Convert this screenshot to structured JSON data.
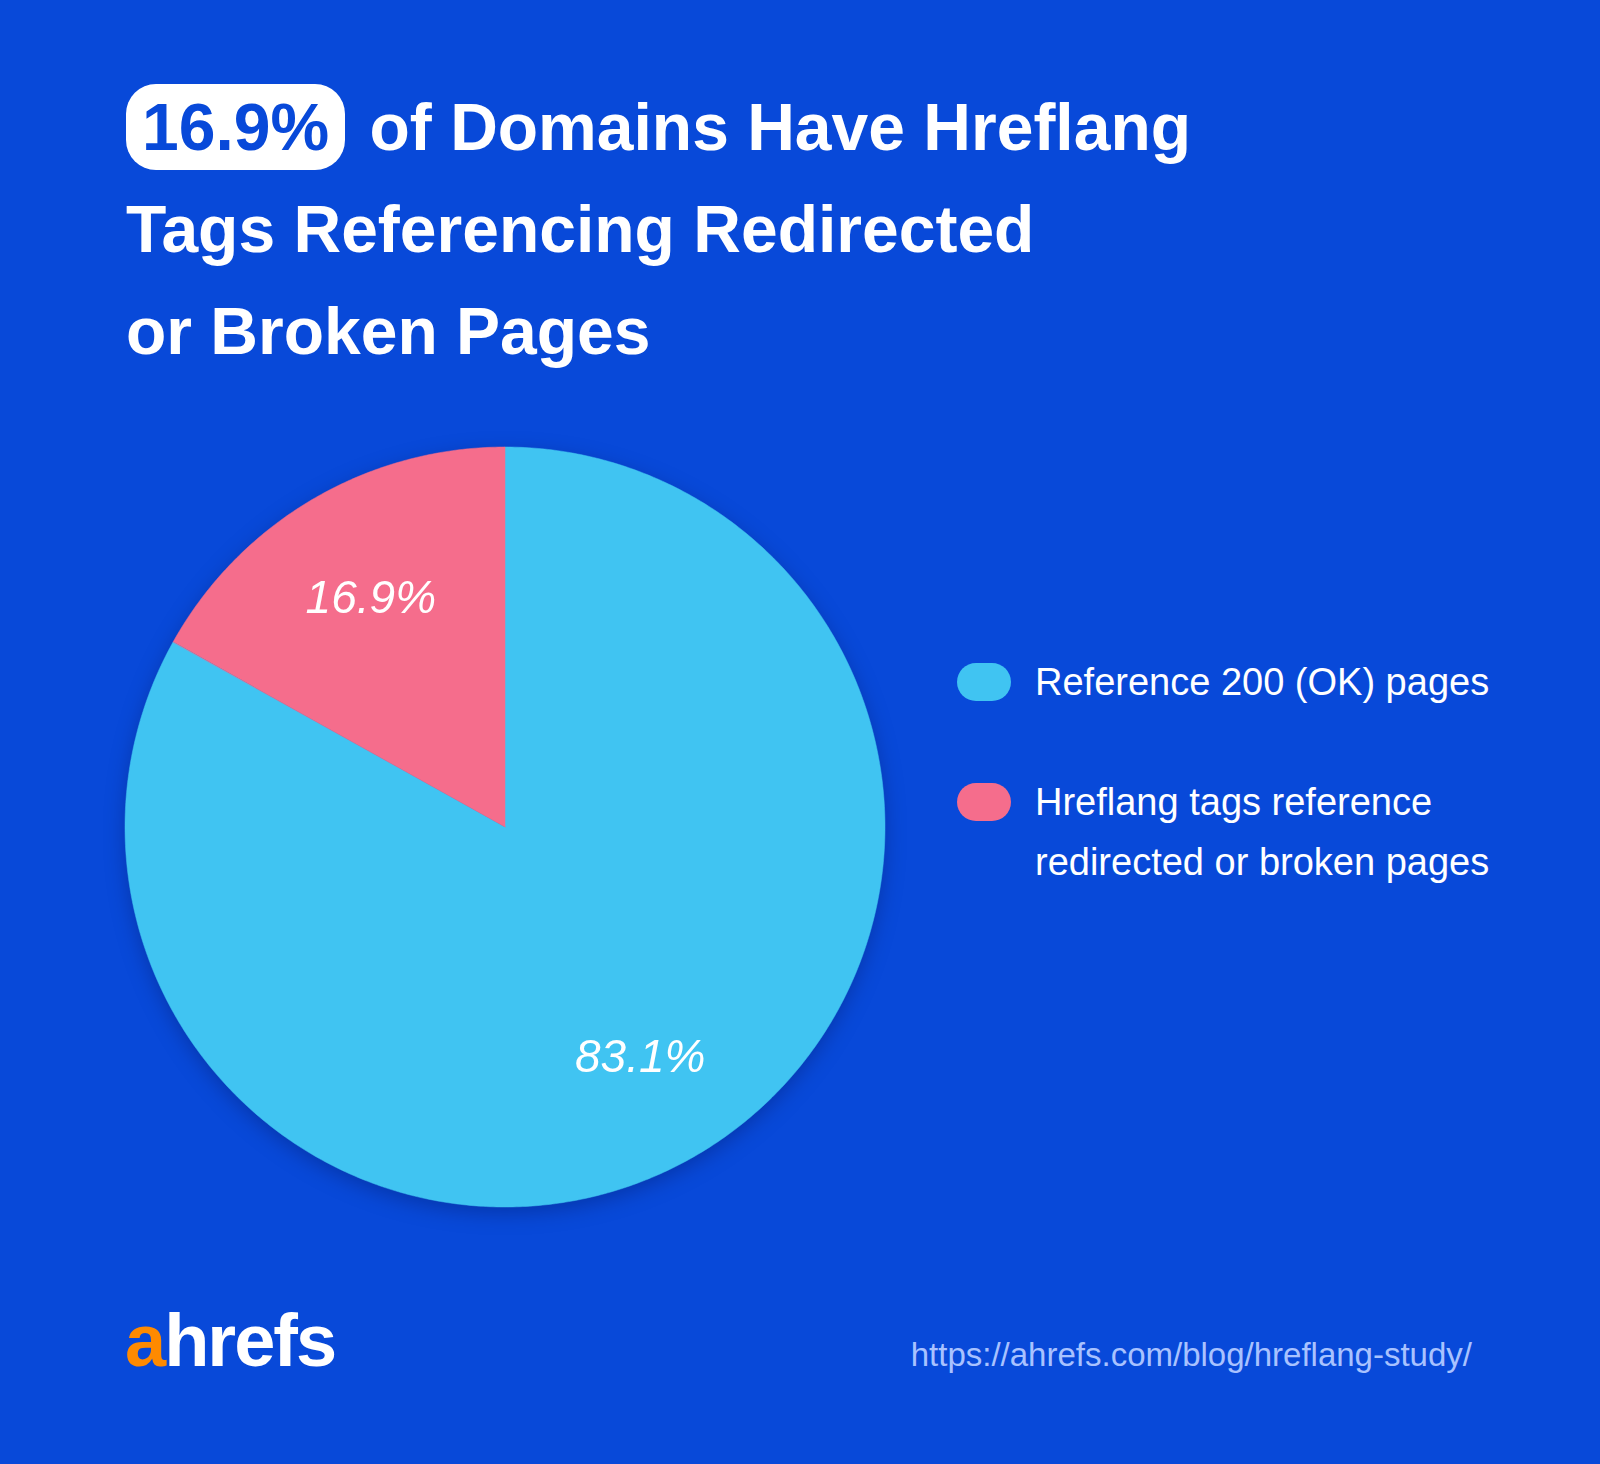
{
  "chart_data": {
    "type": "pie",
    "title": "16.9% of Domains Have Hreflang Tags Referencing Redirected or Broken Pages",
    "categories": [
      "Reference 200 (OK) pages",
      "Hreflang tags reference redirected or broken pages"
    ],
    "values": [
      83.1,
      16.9
    ],
    "value_labels": [
      "83.1%",
      "16.9%"
    ],
    "colors": [
      "#40c4f2",
      "#f56d8c"
    ],
    "data_labels": true,
    "legend": "right",
    "logo": "ahrefs",
    "source": "https://ahrefs.com/blog/hreflang-study/"
  }
}
